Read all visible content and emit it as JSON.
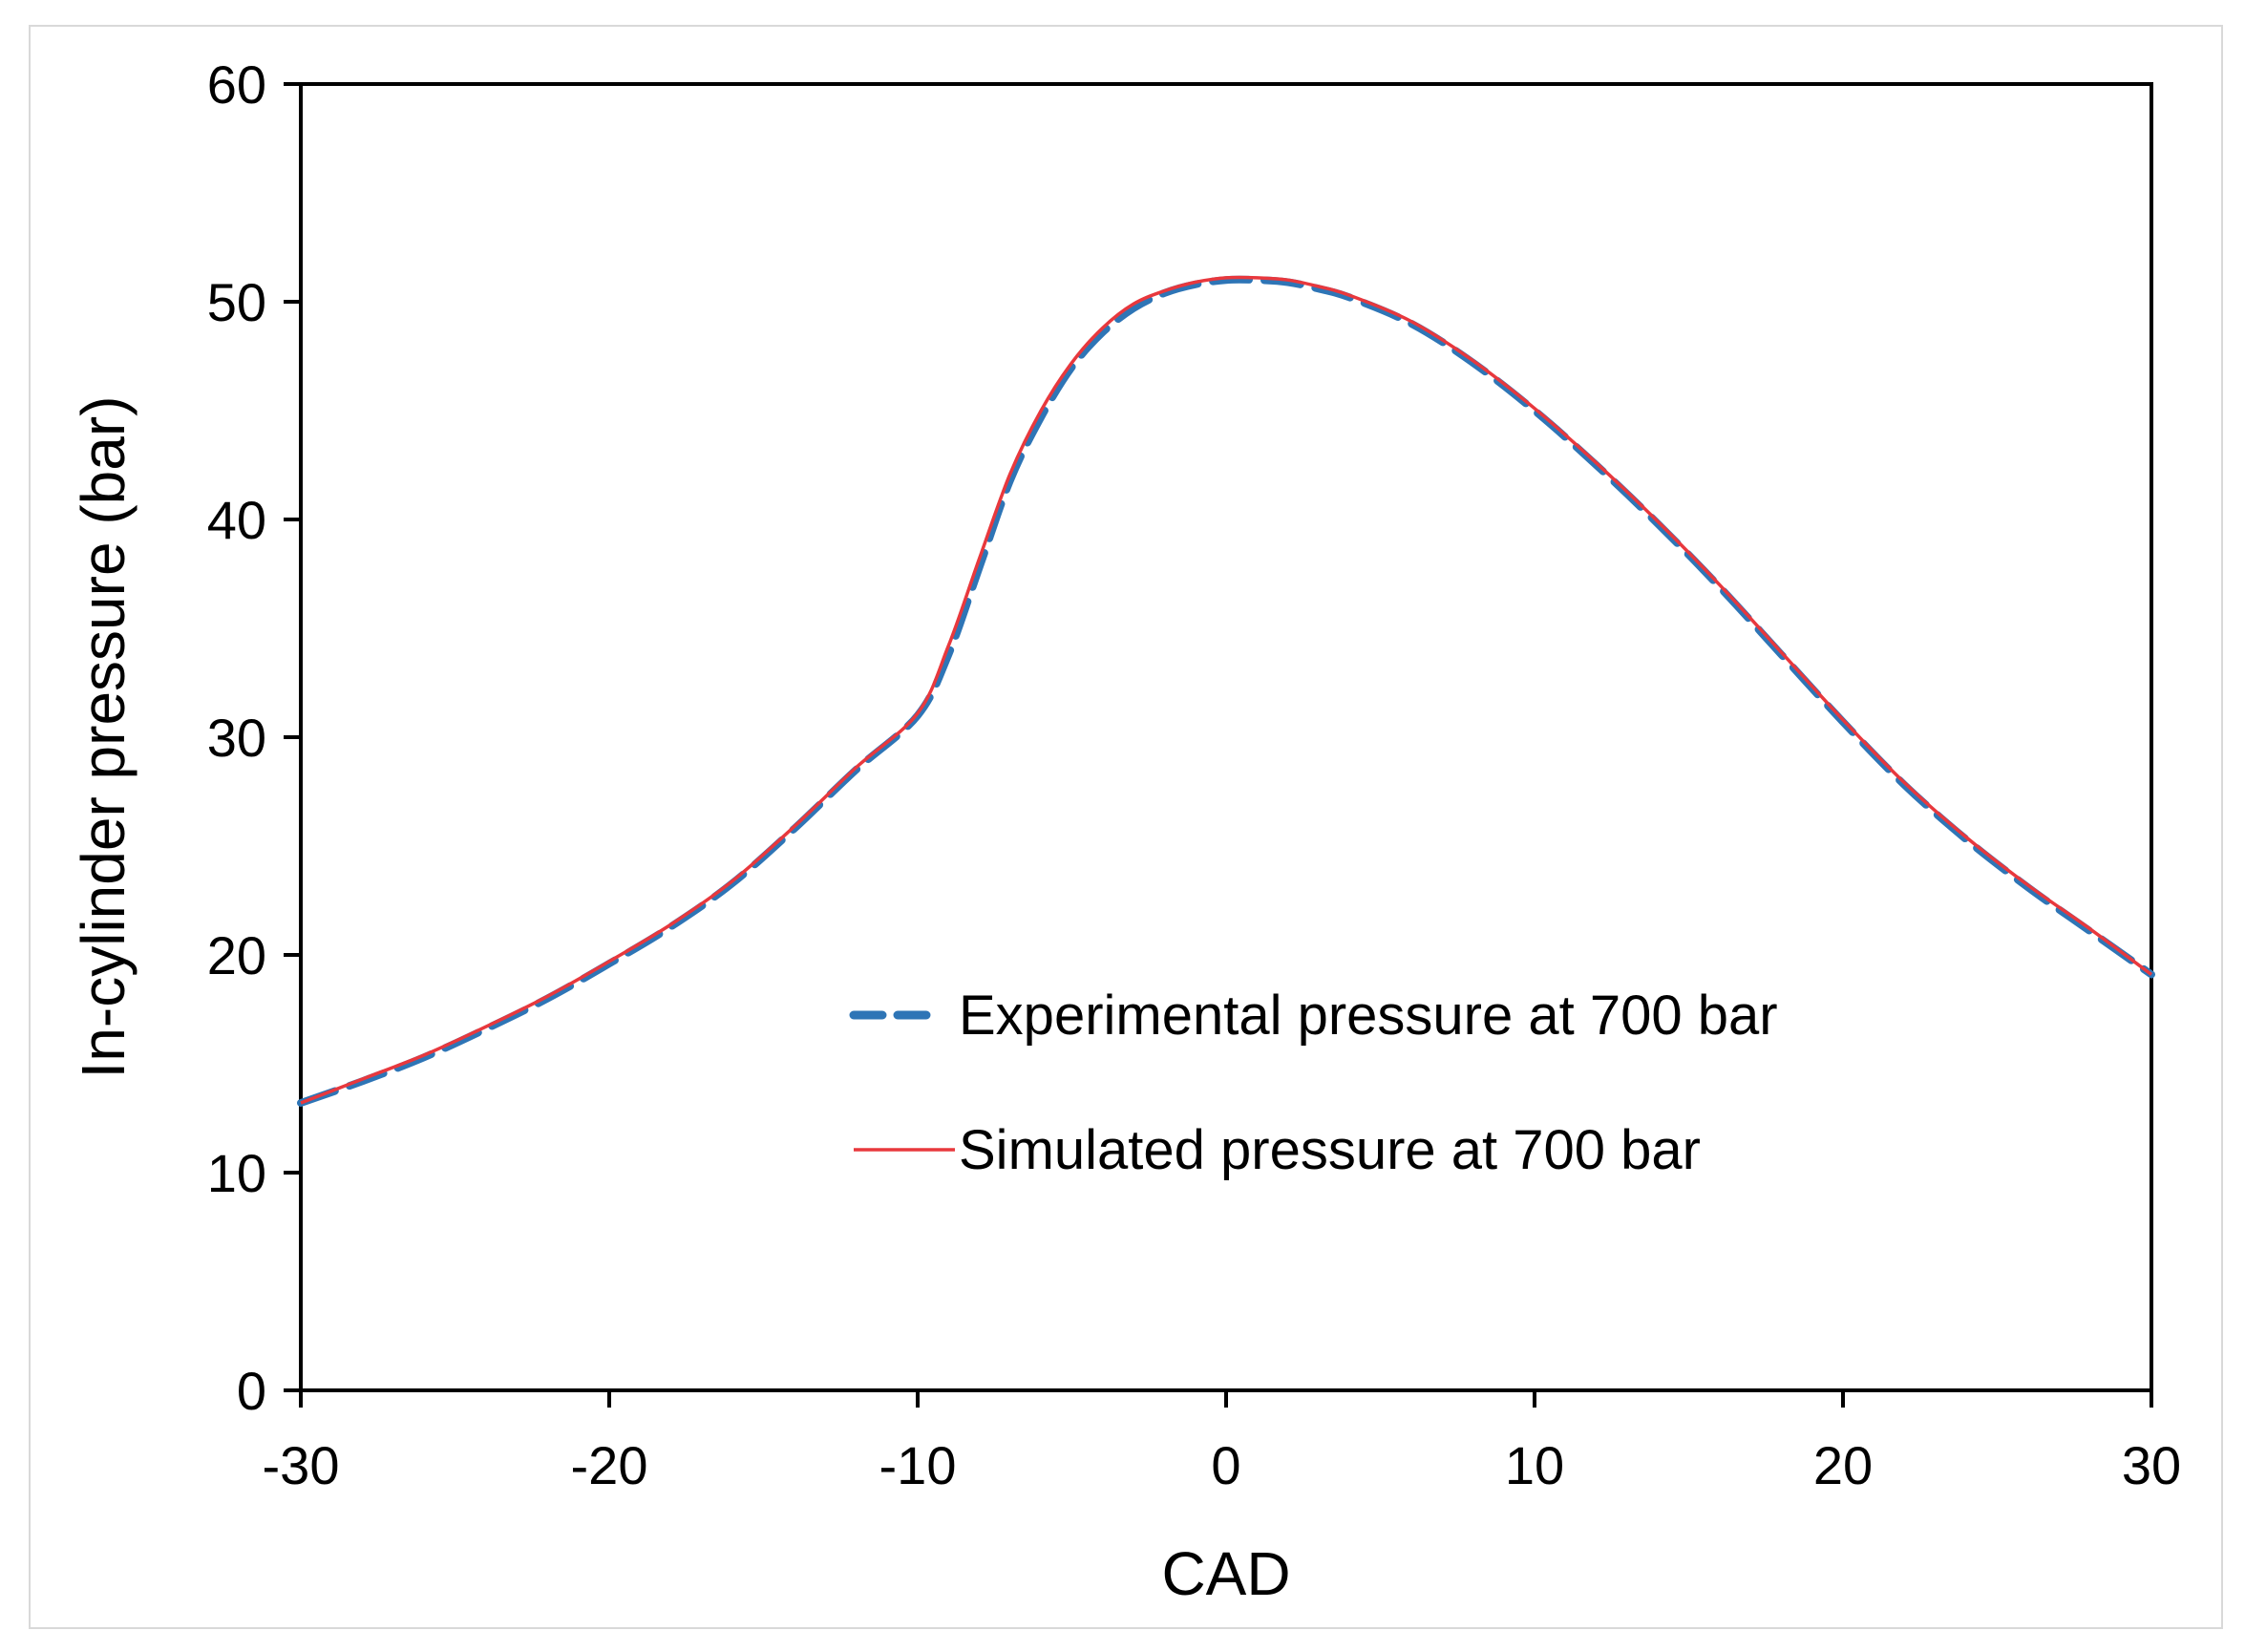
{
  "chart_data": {
    "type": "line",
    "title": "",
    "xlabel": "CAD",
    "ylabel": "In-cylinder pressure (bar)",
    "xlim": [
      -30,
      30
    ],
    "ylim": [
      0,
      60
    ],
    "xticks": [
      -30,
      -20,
      -10,
      0,
      10,
      20,
      30
    ],
    "yticks": [
      0,
      10,
      20,
      30,
      40,
      50,
      60
    ],
    "grid": false,
    "legend_position": "center-right",
    "series": [
      {
        "name": "Experimental pressure at 700 bar",
        "style": "dashed",
        "color": "#2e75b6",
        "x": [
          -30,
          -28,
          -26,
          -24,
          -22,
          -20,
          -18,
          -16,
          -14,
          -12,
          -10,
          -9,
          -8,
          -7,
          -6,
          -5,
          -4,
          -3,
          -2,
          -1,
          0,
          1,
          2,
          3,
          4,
          6,
          8,
          10,
          12,
          14,
          16,
          18,
          20,
          22,
          24,
          26,
          28,
          30
        ],
        "y": [
          13.2,
          14.2,
          15.3,
          16.6,
          18.0,
          19.6,
          21.3,
          23.3,
          25.8,
          28.5,
          31.0,
          33.8,
          37.8,
          41.8,
          44.7,
          47.0,
          48.6,
          49.7,
          50.4,
          50.8,
          51.0,
          51.0,
          50.9,
          50.6,
          50.2,
          49.0,
          47.2,
          45.0,
          42.5,
          39.8,
          36.9,
          33.8,
          30.7,
          27.8,
          25.3,
          23.1,
          21.1,
          19.1
        ]
      },
      {
        "name": "Simulated pressure at 700 bar",
        "style": "solid",
        "color": "#e8383d",
        "x": [
          -30,
          -28,
          -26,
          -24,
          -22,
          -20,
          -18,
          -16,
          -14,
          -12,
          -10,
          -9,
          -8,
          -7,
          -6,
          -5,
          -4,
          -3,
          -2,
          -1,
          0,
          1,
          2,
          3,
          4,
          6,
          8,
          10,
          12,
          14,
          16,
          18,
          20,
          22,
          24,
          26,
          28,
          30
        ],
        "y": [
          13.2,
          14.3,
          15.4,
          16.7,
          18.1,
          19.7,
          21.4,
          23.4,
          25.9,
          28.6,
          31.1,
          34.2,
          38.2,
          42.1,
          45.0,
          47.2,
          48.8,
          49.9,
          50.5,
          50.9,
          51.1,
          51.1,
          51.0,
          50.7,
          50.3,
          49.1,
          47.3,
          45.1,
          42.6,
          39.9,
          37.0,
          33.9,
          30.8,
          27.9,
          25.4,
          23.2,
          21.2,
          19.1
        ]
      }
    ]
  }
}
